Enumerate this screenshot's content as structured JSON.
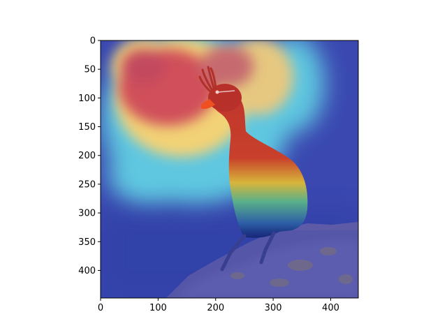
{
  "chart_data": {
    "type": "heatmap",
    "title": "",
    "xlabel": "",
    "ylabel": "",
    "image_width": 448,
    "image_height": 448,
    "xlim": [
      0,
      448
    ],
    "ylim": [
      448,
      0
    ],
    "x_ticks": [
      0,
      100,
      200,
      300,
      400
    ],
    "y_ticks": [
      0,
      50,
      100,
      150,
      200,
      250,
      300,
      350,
      400
    ],
    "colormap": "jet",
    "grid": false,
    "colors": {
      "background": "#3a48b0",
      "hot": "#d2413f",
      "warm": "#f0d070",
      "cool": "#7ad6df",
      "bird_body": "#b5302a",
      "bird_belly": "#3aa08c",
      "rock": "#5b5aa6"
    }
  }
}
